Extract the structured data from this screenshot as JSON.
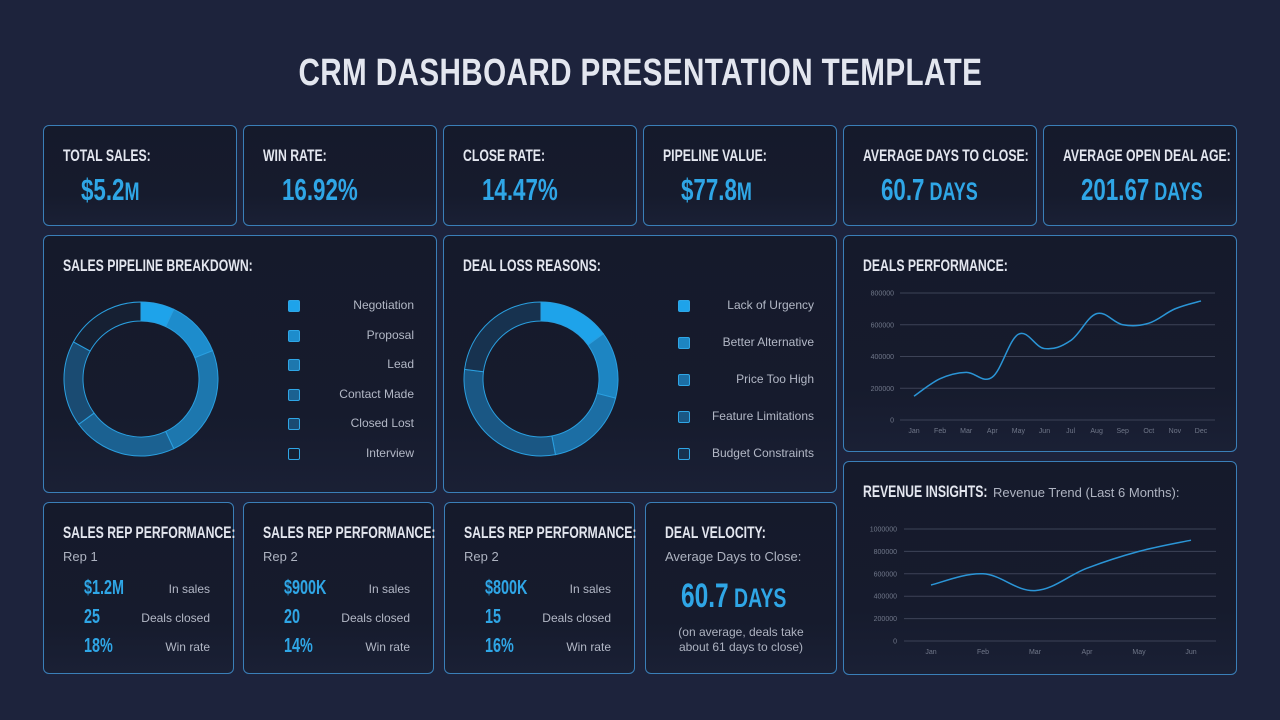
{
  "title": "CRM DASHBOARD PRESENTATION TEMPLATE",
  "kpis": [
    {
      "label": "TOTAL SALES:",
      "value": "$5.2",
      "unit": "M"
    },
    {
      "label": "WIN RATE:",
      "value": "16.92%",
      "unit": ""
    },
    {
      "label": "CLOSE RATE:",
      "value": "14.47%",
      "unit": ""
    },
    {
      "label": "PIPELINE VALUE:",
      "value": "$77.8",
      "unit": "M"
    },
    {
      "label": "AVERAGE DAYS TO CLOSE:",
      "value": "60.7",
      "unit": " DAYS"
    },
    {
      "label": "AVERAGE OPEN DEAL AGE:",
      "value": "201.67",
      "unit": " DAYS"
    }
  ],
  "pipeline": {
    "label": "SALES PIPELINE BREAKDOWN:",
    "legend": [
      {
        "name": "Negotiation",
        "color": "#1ea3ea"
      },
      {
        "name": "Proposal",
        "color": "#1d8ccc"
      },
      {
        "name": "Lead",
        "color": "#1d77ae"
      },
      {
        "name": "Contact Made",
        "color": "#1b6191"
      },
      {
        "name": "Closed Lost",
        "color": "#1a4b72"
      },
      {
        "name": "Interview",
        "color": "#162033"
      }
    ]
  },
  "loss": {
    "label": "DEAL LOSS REASONS:",
    "legend": [
      {
        "name": "Lack of Urgency",
        "color": "#1ea3ea"
      },
      {
        "name": "Better Alternative",
        "color": "#1d85c2"
      },
      {
        "name": "Price Too High",
        "color": "#1c6ea4"
      },
      {
        "name": "Feature Limitations",
        "color": "#1a5784"
      },
      {
        "name": "Budget Constraints",
        "color": "#17324f"
      }
    ]
  },
  "deals_performance": {
    "label": "DEALS PERFORMANCE:"
  },
  "revenue_insights": {
    "label": "REVENUE INSIGHTS:",
    "subtitle": "Revenue Trend (Last 6 Months):"
  },
  "reps": [
    {
      "label": "SALES REP PERFORMANCE:",
      "name": "Rep 1",
      "rows": [
        {
          "value": "$1.2M",
          "label": "In sales"
        },
        {
          "value": "25",
          "label": "Deals closed"
        },
        {
          "value": "18%",
          "label": "Win rate"
        }
      ]
    },
    {
      "label": "SALES REP PERFORMANCE:",
      "name": "Rep 2",
      "rows": [
        {
          "value": "$900K",
          "label": "In sales"
        },
        {
          "value": "20",
          "label": "Deals closed"
        },
        {
          "value": "14%",
          "label": "Win rate"
        }
      ]
    },
    {
      "label": "SALES REP PERFORMANCE:",
      "name": "Rep 2",
      "rows": [
        {
          "value": "$800K",
          "label": "In sales"
        },
        {
          "value": "15",
          "label": "Deals closed"
        },
        {
          "value": "16%",
          "label": "Win rate"
        }
      ]
    }
  ],
  "velocity": {
    "label": "DEAL VELOCITY:",
    "subtitle": "Average Days to Close:",
    "value": "60.7",
    "unit": " DAYS",
    "note_line1": "(on average, deals take",
    "note_line2": "about 61 days to close)"
  },
  "chart_data": [
    {
      "type": "pie",
      "title": "SALES PIPELINE BREAKDOWN:",
      "donut": true,
      "categories": [
        "Negotiation",
        "Proposal",
        "Lead",
        "Contact Made",
        "Closed Lost",
        "Interview"
      ],
      "values": [
        7,
        12,
        24,
        22,
        18,
        17
      ],
      "colors": [
        "#1ea3ea",
        "#1d8ccc",
        "#1d77ae",
        "#1b6191",
        "#1a4b72",
        "#162033"
      ]
    },
    {
      "type": "pie",
      "title": "DEAL LOSS REASONS:",
      "donut": true,
      "categories": [
        "Lack of Urgency",
        "Better Alternative",
        "Price Too High",
        "Feature Limitations",
        "Budget Constraints"
      ],
      "values": [
        15,
        14,
        18,
        30,
        23
      ],
      "colors": [
        "#1ea3ea",
        "#1d85c2",
        "#1c6ea4",
        "#1a5784",
        "#17324f"
      ]
    },
    {
      "type": "line",
      "title": "DEALS PERFORMANCE:",
      "x": [
        "Jan",
        "Feb",
        "Mar",
        "Apr",
        "May",
        "Jun",
        "Jul",
        "Aug",
        "Sep",
        "Oct",
        "Nov",
        "Dec"
      ],
      "series": [
        {
          "name": "Deals",
          "values": [
            150000,
            260000,
            300000,
            270000,
            540000,
            450000,
            500000,
            670000,
            600000,
            610000,
            700000,
            750000
          ]
        }
      ],
      "yticks": [
        0,
        200000,
        400000,
        600000,
        800000
      ],
      "ylim": [
        0,
        800000
      ],
      "grid": true,
      "color": "#2b95d6"
    },
    {
      "type": "line",
      "title": "Revenue Trend (Last 6 Months):",
      "x": [
        "Jan",
        "Feb",
        "Mar",
        "Apr",
        "May",
        "Jun"
      ],
      "series": [
        {
          "name": "Revenue",
          "values": [
            500000,
            600000,
            450000,
            650000,
            800000,
            900000
          ]
        }
      ],
      "yticks": [
        0,
        200000,
        400000,
        600000,
        800000,
        1000000
      ],
      "ylim": [
        0,
        1000000
      ],
      "grid": true,
      "color": "#2b95d6"
    }
  ]
}
